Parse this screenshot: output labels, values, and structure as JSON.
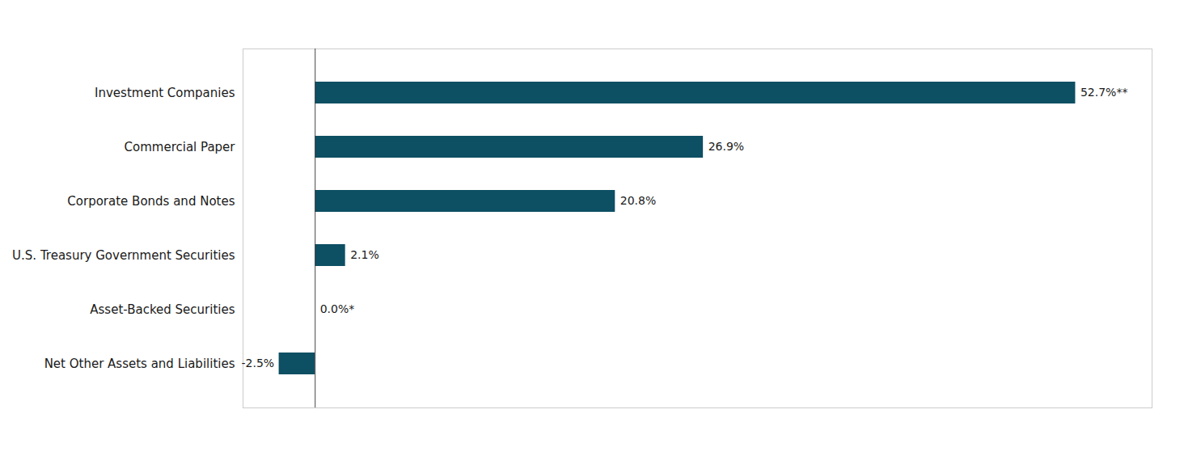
{
  "chart_data": {
    "type": "bar",
    "orientation": "horizontal",
    "categories": [
      "Investment Companies",
      "Commercial Paper",
      "Corporate Bonds and Notes",
      "U.S. Treasury Government Securities",
      "Asset-Backed Securities",
      "Net Other Assets and Liabilities"
    ],
    "values": [
      52.7,
      26.9,
      20.8,
      2.1,
      0.0,
      -2.5
    ],
    "value_labels": [
      "52.7%**",
      "26.9%",
      "20.8%",
      "2.1%",
      "0.0%*",
      "-2.5%"
    ],
    "color": "#0d4f63",
    "xlim": [
      -5,
      58
    ],
    "data_labels": true,
    "tick_labels": "y"
  }
}
